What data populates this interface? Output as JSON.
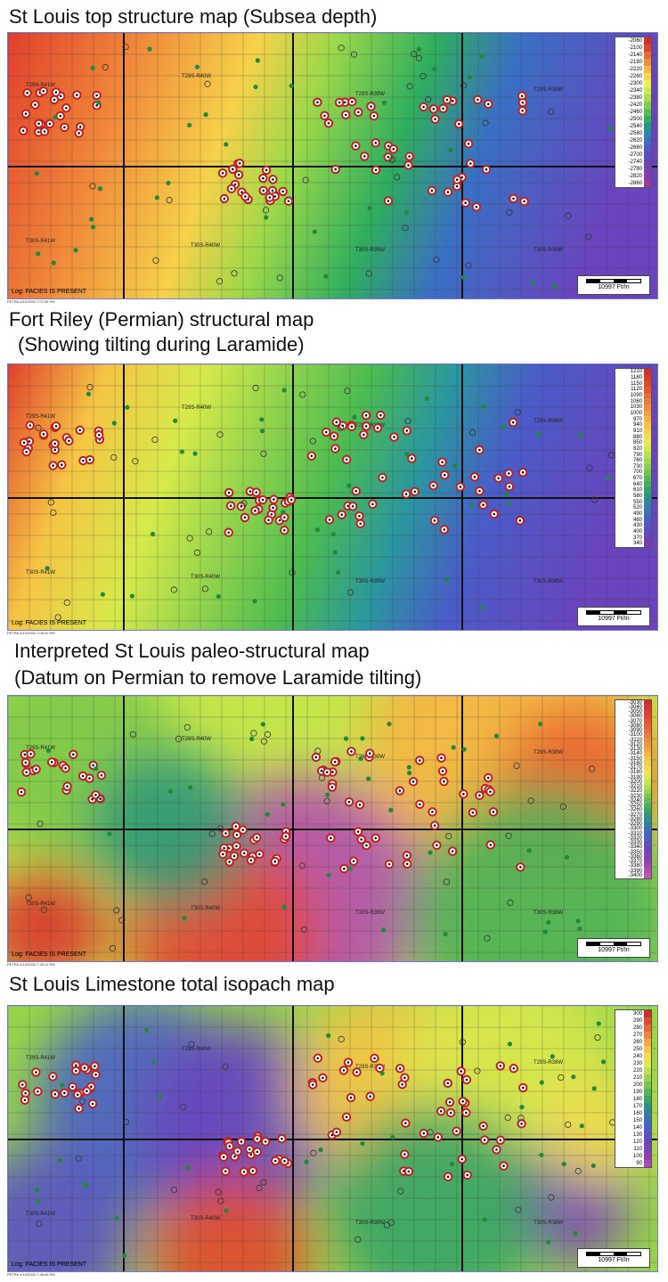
{
  "maps": [
    {
      "id": "map1",
      "title": "St Louis top structure map (Subsea depth)",
      "legend_values": [
        "-2060",
        "-2100",
        "-2140",
        "-2180",
        "-2220",
        "-2260",
        "-2300",
        "-2340",
        "-2380",
        "-2420",
        "-2460",
        "-2500",
        "-2540",
        "-2580",
        "-2620",
        "-2660",
        "-2700",
        "-2740",
        "-2780",
        "-2820",
        "-2860"
      ],
      "legend_colors": [
        "#d62c2c",
        "#e0452c",
        "#ea6a30",
        "#f1903a",
        "#f6b640",
        "#f7d64a",
        "#eef04c",
        "#cdeb4a",
        "#a6df48",
        "#7ed04a",
        "#54c04e",
        "#2fae5e",
        "#1c9a8a",
        "#2a86b0",
        "#3a6fc4",
        "#4b5bc8",
        "#5a4cc4",
        "#6a44be",
        "#7a3eb6",
        "#8a3aae",
        "#9a38a8"
      ],
      "gradient": [
        [
          0.0,
          "#e0402c"
        ],
        [
          0.2,
          "#f0883a"
        ],
        [
          0.38,
          "#f6d24a"
        ],
        [
          0.5,
          "#9ad84a"
        ],
        [
          0.65,
          "#2fae5e"
        ],
        [
          0.78,
          "#3a6fc4"
        ],
        [
          1.0,
          "#6a44be"
        ]
      ],
      "labels": [
        "T29S-R41W",
        "T29S-R40W",
        "T29S-R39W",
        "T29S-R38W",
        "T30S-R41W",
        "T30S-R40W",
        "T30S-R39W",
        "T30S-R38W"
      ],
      "log_text": "Log: FACIES IS PRESENT",
      "scale_text": "10997 Ft/In",
      "petra_text": "PETRA 4/10/2004 7:07:06 PM"
    },
    {
      "id": "map2",
      "title": "Fort Riley (Permian) structural map",
      "subtitle": "(Showing tilting during Laramide)",
      "legend_values": [
        "1210",
        "1180",
        "1150",
        "1120",
        "1090",
        "1060",
        "1030",
        "1000",
        "970",
        "940",
        "910",
        "880",
        "850",
        "820",
        "790",
        "760",
        "730",
        "700",
        "670",
        "640",
        "610",
        "580",
        "550",
        "520",
        "490",
        "460",
        "430",
        "400",
        "370",
        "340"
      ],
      "legend_colors": [
        "#d62c2c",
        "#dc382c",
        "#e2462e",
        "#e85630",
        "#ec6834",
        "#f07a38",
        "#f38c3a",
        "#f59e3c",
        "#f6b040",
        "#f7c244",
        "#f7d248",
        "#f2e04a",
        "#e6ea4c",
        "#d0e84a",
        "#b8e24a",
        "#a0da48",
        "#86d04a",
        "#6cc64c",
        "#52bb52",
        "#3cae5c",
        "#2ea06c",
        "#269486",
        "#2a88a0",
        "#327ab4",
        "#3c6cc0",
        "#4860c6",
        "#5454c6",
        "#604ac2",
        "#6c42bc",
        "#7a3cb4"
      ],
      "gradient": [
        [
          0.0,
          "#e0402c"
        ],
        [
          0.15,
          "#f6c444"
        ],
        [
          0.3,
          "#d6ea4a"
        ],
        [
          0.55,
          "#4cbc50"
        ],
        [
          0.68,
          "#2a96a0"
        ],
        [
          0.8,
          "#4a5cc8"
        ],
        [
          1.0,
          "#6a44be"
        ]
      ],
      "labels": [
        "T29S-R41W",
        "T29S-R40W",
        "T29S-R39W",
        "T29S-R38W",
        "T30S-R41W",
        "T30S-R40W",
        "T30S-R39W",
        "T30S-R38W"
      ],
      "log_text": "Log: FACIES IS PRESENT",
      "scale_text": "10997 Ft/In",
      "petra_text": "PETRA 4/10/2004 7:05:39 PM"
    },
    {
      "id": "map3",
      "title": "Interpreted St Louis paleo-structural map",
      "subtitle": "(Datum on Permian to remove Laramide tilting)",
      "legend_values": [
        "-3030",
        "-3040",
        "-3050",
        "-3060",
        "-3070",
        "-3080",
        "-3090",
        "-3100",
        "-3110",
        "-3120",
        "-3130",
        "-3140",
        "-3150",
        "-3160",
        "-3170",
        "-3180",
        "-3190",
        "-3200",
        "-3210",
        "-3220",
        "-3230",
        "-3240",
        "-3250",
        "-3260",
        "-3270",
        "-3280",
        "-3290",
        "-3300",
        "-3310",
        "-3320",
        "-3330",
        "-3340",
        "-3350",
        "-3360",
        "-3370",
        "-3380",
        "-3390",
        "-3400"
      ],
      "legend_colors": [
        "#d62c2c",
        "#da342c",
        "#de3e2c",
        "#e2482e",
        "#e65430",
        "#ea6032",
        "#ee6e36",
        "#f17c38",
        "#f38a3a",
        "#f5983c",
        "#f6a63e",
        "#f7b442",
        "#f7c246",
        "#f6d04a",
        "#f2dc4c",
        "#e8e64c",
        "#d8ea4c",
        "#c4e64a",
        "#aede48",
        "#96d448",
        "#7cc84a",
        "#62bc50",
        "#4ab058",
        "#38a466",
        "#2c9878",
        "#288c90",
        "#2e7ea8",
        "#3870b8",
        "#4464c2",
        "#505ac6",
        "#5c50c4",
        "#6848c0",
        "#7442ba",
        "#8440b6",
        "#9440b2",
        "#a444b0",
        "#b44cb0",
        "#c254b2"
      ],
      "gradient": [],
      "labels": [
        "T29S-R41W",
        "T29S-R40W",
        "T29S-R39W",
        "T29S-R38W",
        "T30S-R41W",
        "T30S-R40W",
        "T30S-R39W",
        "T30S-R38W"
      ],
      "log_text": "Log: FACIES IS PRESENT",
      "scale_text": "10997 Ft/In",
      "petra_text": "PETRA 4/10/2004 7:40:12 PM"
    },
    {
      "id": "map4",
      "title": "St Louis Limestone total isopach map",
      "legend_values": [
        "300",
        "290",
        "280",
        "270",
        "260",
        "250",
        "240",
        "230",
        "220",
        "210",
        "200",
        "190",
        "180",
        "170",
        "160",
        "150",
        "140",
        "130",
        "120",
        "110",
        "100",
        "90"
      ],
      "legend_colors": [
        "#d62c2c",
        "#e2482e",
        "#ec6634",
        "#f3863a",
        "#f6a63e",
        "#f7c446",
        "#f3dc4c",
        "#dce84c",
        "#bce44a",
        "#98d648",
        "#74c64c",
        "#52b654",
        "#38a466",
        "#2a9280",
        "#2c80a6",
        "#3a6ebc",
        "#4a60c6",
        "#5a52c4",
        "#6a46be",
        "#7c40b8",
        "#9040b4",
        "#a848b2"
      ],
      "gradient": [],
      "labels": [
        "T29S-R41W",
        "T29S-R40W",
        "T29S-R39W",
        "T29S-R38W",
        "T30S-R41W",
        "T30S-R40W",
        "T30S-R39W",
        "T30S-R38W"
      ],
      "log_text": "Log: FACIES IS PRESENT",
      "scale_text": "10997 Ft/In",
      "petra_text": "PETRA 4/10/2004 7:48:46 PM"
    }
  ]
}
